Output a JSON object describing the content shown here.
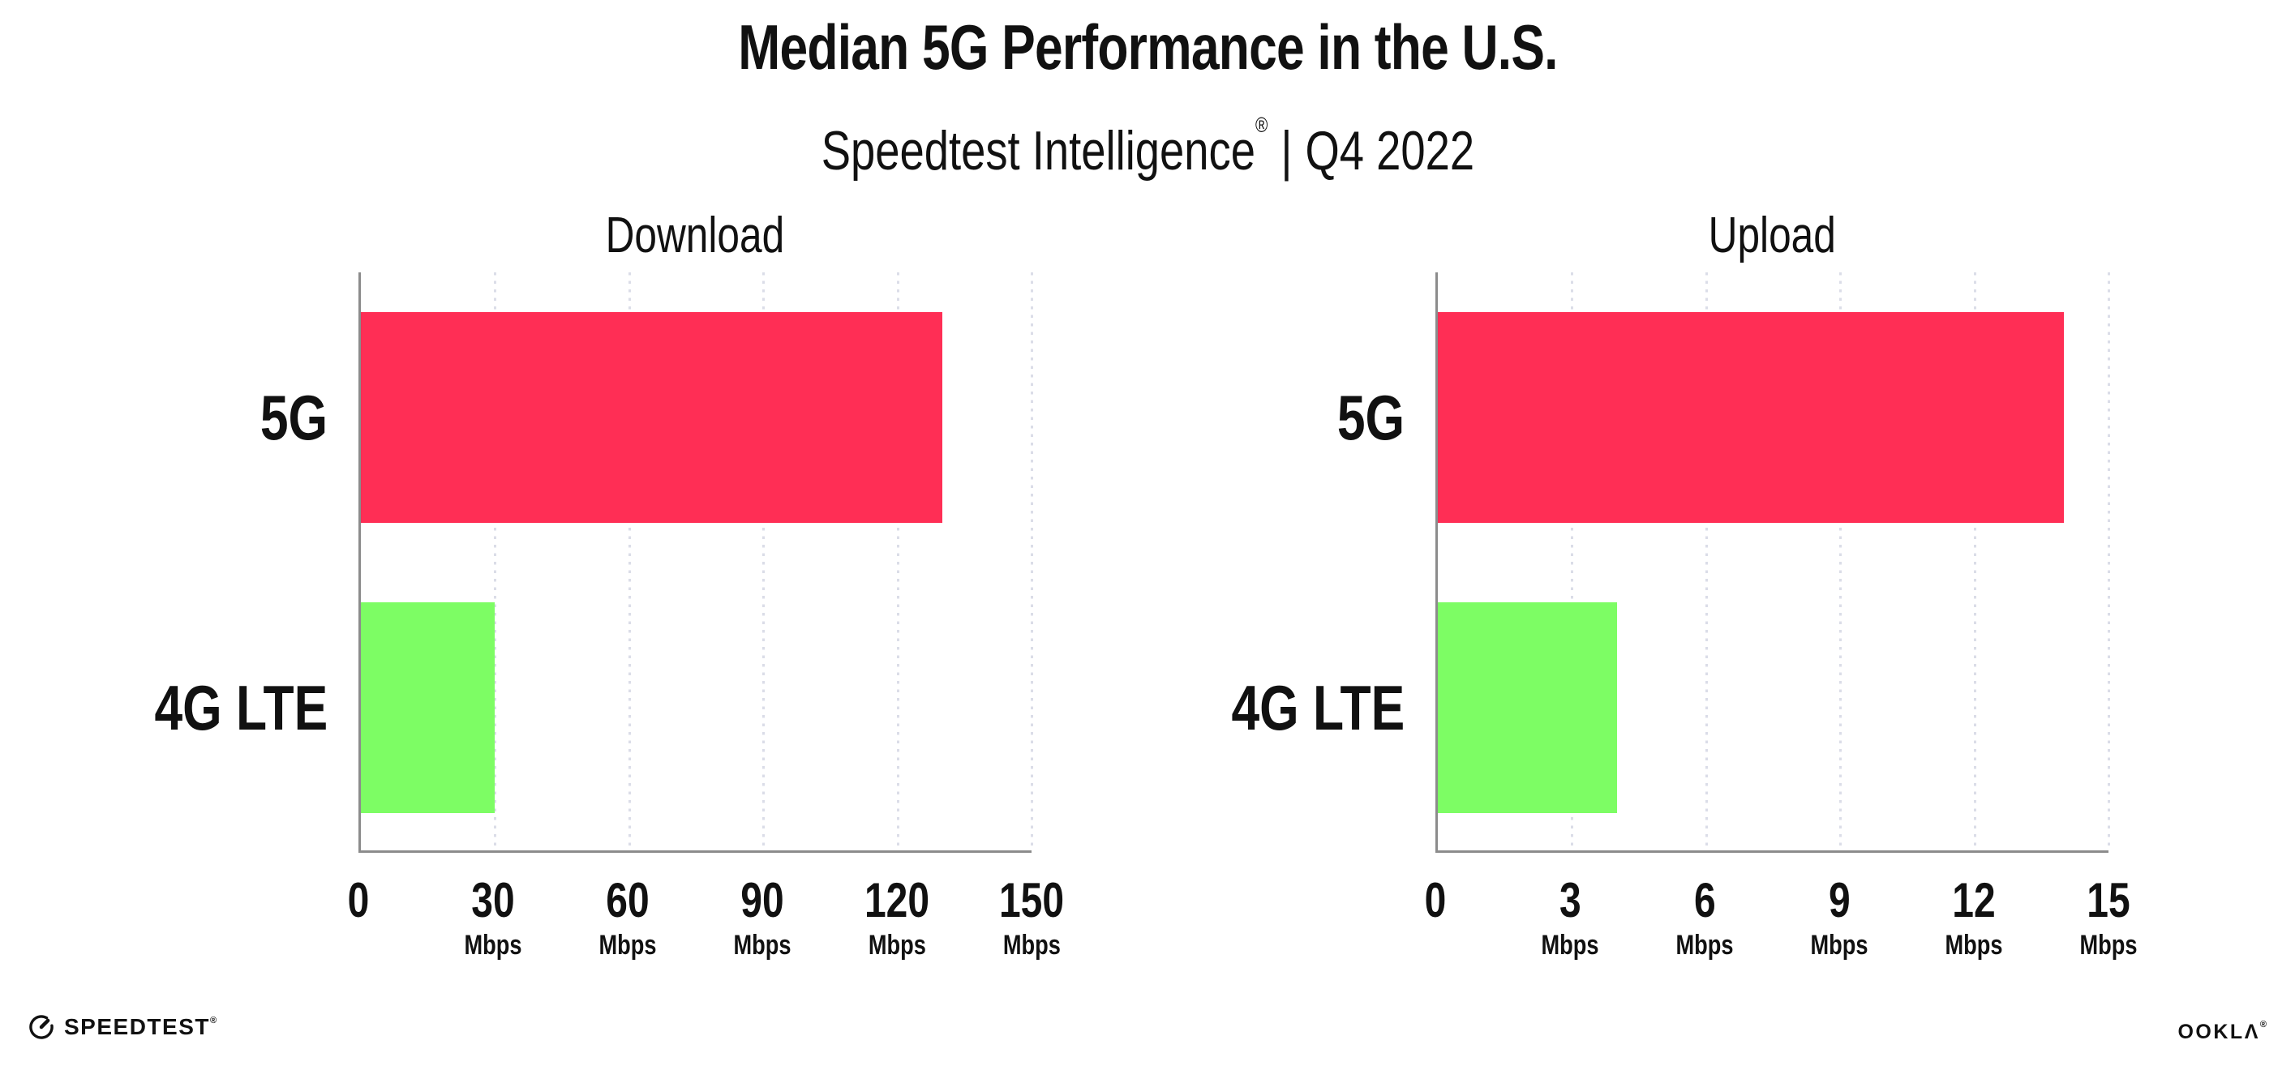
{
  "header": {
    "title": "Median 5G Performance in the U.S.",
    "subtitle_brand": "Speedtest Intelligence",
    "subtitle_mark": "®",
    "subtitle_separator": "|",
    "subtitle_period": "Q4 2022"
  },
  "chart_data": [
    {
      "type": "bar",
      "orientation": "horizontal",
      "title": "Download",
      "categories": [
        "5G",
        "4G LTE"
      ],
      "values": [
        130,
        30
      ],
      "unit": "Mbps",
      "xlim": [
        0,
        150
      ],
      "xticks": [
        0,
        30,
        60,
        90,
        120,
        150
      ],
      "bar_colors": [
        "#FF2E55",
        "#7DFD64"
      ],
      "grid": "dotted-vertical",
      "legend": "none"
    },
    {
      "type": "bar",
      "orientation": "horizontal",
      "title": "Upload",
      "categories": [
        "5G",
        "4G LTE"
      ],
      "values": [
        14,
        4
      ],
      "unit": "Mbps",
      "xlim": [
        0,
        15
      ],
      "xticks": [
        0,
        3,
        6,
        9,
        12,
        15
      ],
      "bar_colors": [
        "#FF2E55",
        "#7DFD64"
      ],
      "grid": "dotted-vertical",
      "legend": "none"
    }
  ],
  "footer": {
    "speedtest_wordmark": "SPEEDTEST",
    "speedtest_mark": "®",
    "ookla_wordmark": "OOKLΛ",
    "ookla_mark": "®"
  },
  "colors": {
    "bar_5g": "#FF2E55",
    "bar_4g_lte": "#7DFD64",
    "axis_line": "#8C8C8C",
    "gridline_dots": "#DBDDE8",
    "text": "#111111"
  }
}
